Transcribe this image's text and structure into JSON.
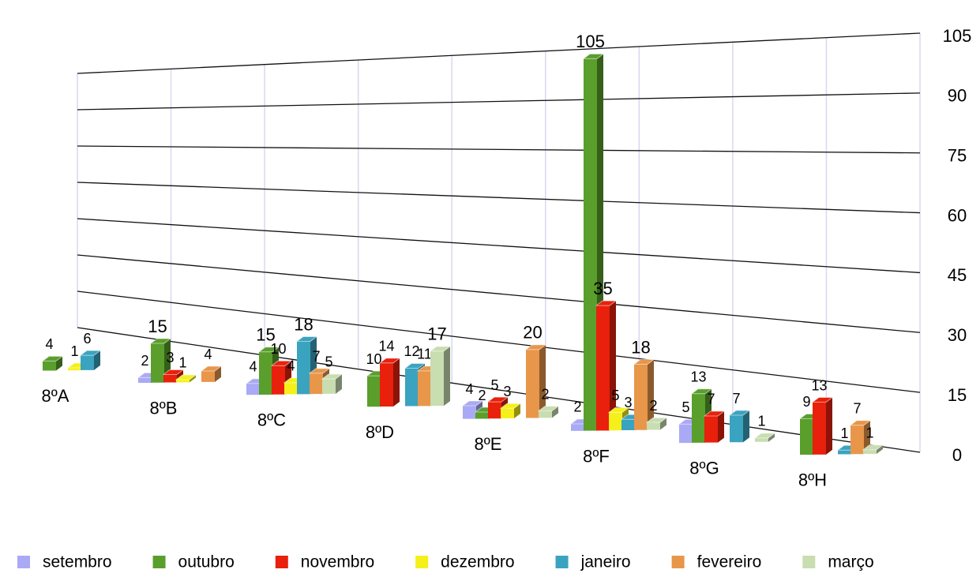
{
  "chart_data": {
    "type": "bar3d",
    "categories": [
      "8ºA",
      "8ºB",
      "8ºC",
      "8ºD",
      "8ºE",
      "8ºF",
      "8ºG",
      "8ºH"
    ],
    "series": [
      {
        "name": "setembro",
        "color": "#a9a9f5",
        "values": [
          null,
          2,
          4,
          null,
          4,
          2,
          5,
          null
        ]
      },
      {
        "name": "outubro",
        "color": "#5a9e2c",
        "values": [
          4,
          15,
          15,
          10,
          2,
          105,
          13,
          9
        ]
      },
      {
        "name": "novembro",
        "color": "#e8200c",
        "values": [
          null,
          3,
          10,
          14,
          5,
          35,
          7,
          13
        ]
      },
      {
        "name": "dezembro",
        "color": "#f5f01a",
        "values": [
          1,
          1,
          4,
          null,
          3,
          5,
          null,
          null
        ]
      },
      {
        "name": "janeiro",
        "color": "#3aa3c0",
        "values": [
          6,
          null,
          18,
          12,
          null,
          3,
          7,
          1
        ]
      },
      {
        "name": "fevereiro",
        "color": "#e8964a",
        "values": [
          null,
          4,
          7,
          11,
          20,
          18,
          null,
          7
        ]
      },
      {
        "name": "março",
        "color": "#c8ddb0",
        "values": [
          null,
          null,
          5,
          17,
          2,
          2,
          1,
          1
        ]
      }
    ],
    "ylim": [
      0,
      105
    ],
    "yticks": [
      0,
      15,
      30,
      45,
      60,
      75,
      90,
      105
    ],
    "grid": true,
    "legend": "bottom"
  }
}
